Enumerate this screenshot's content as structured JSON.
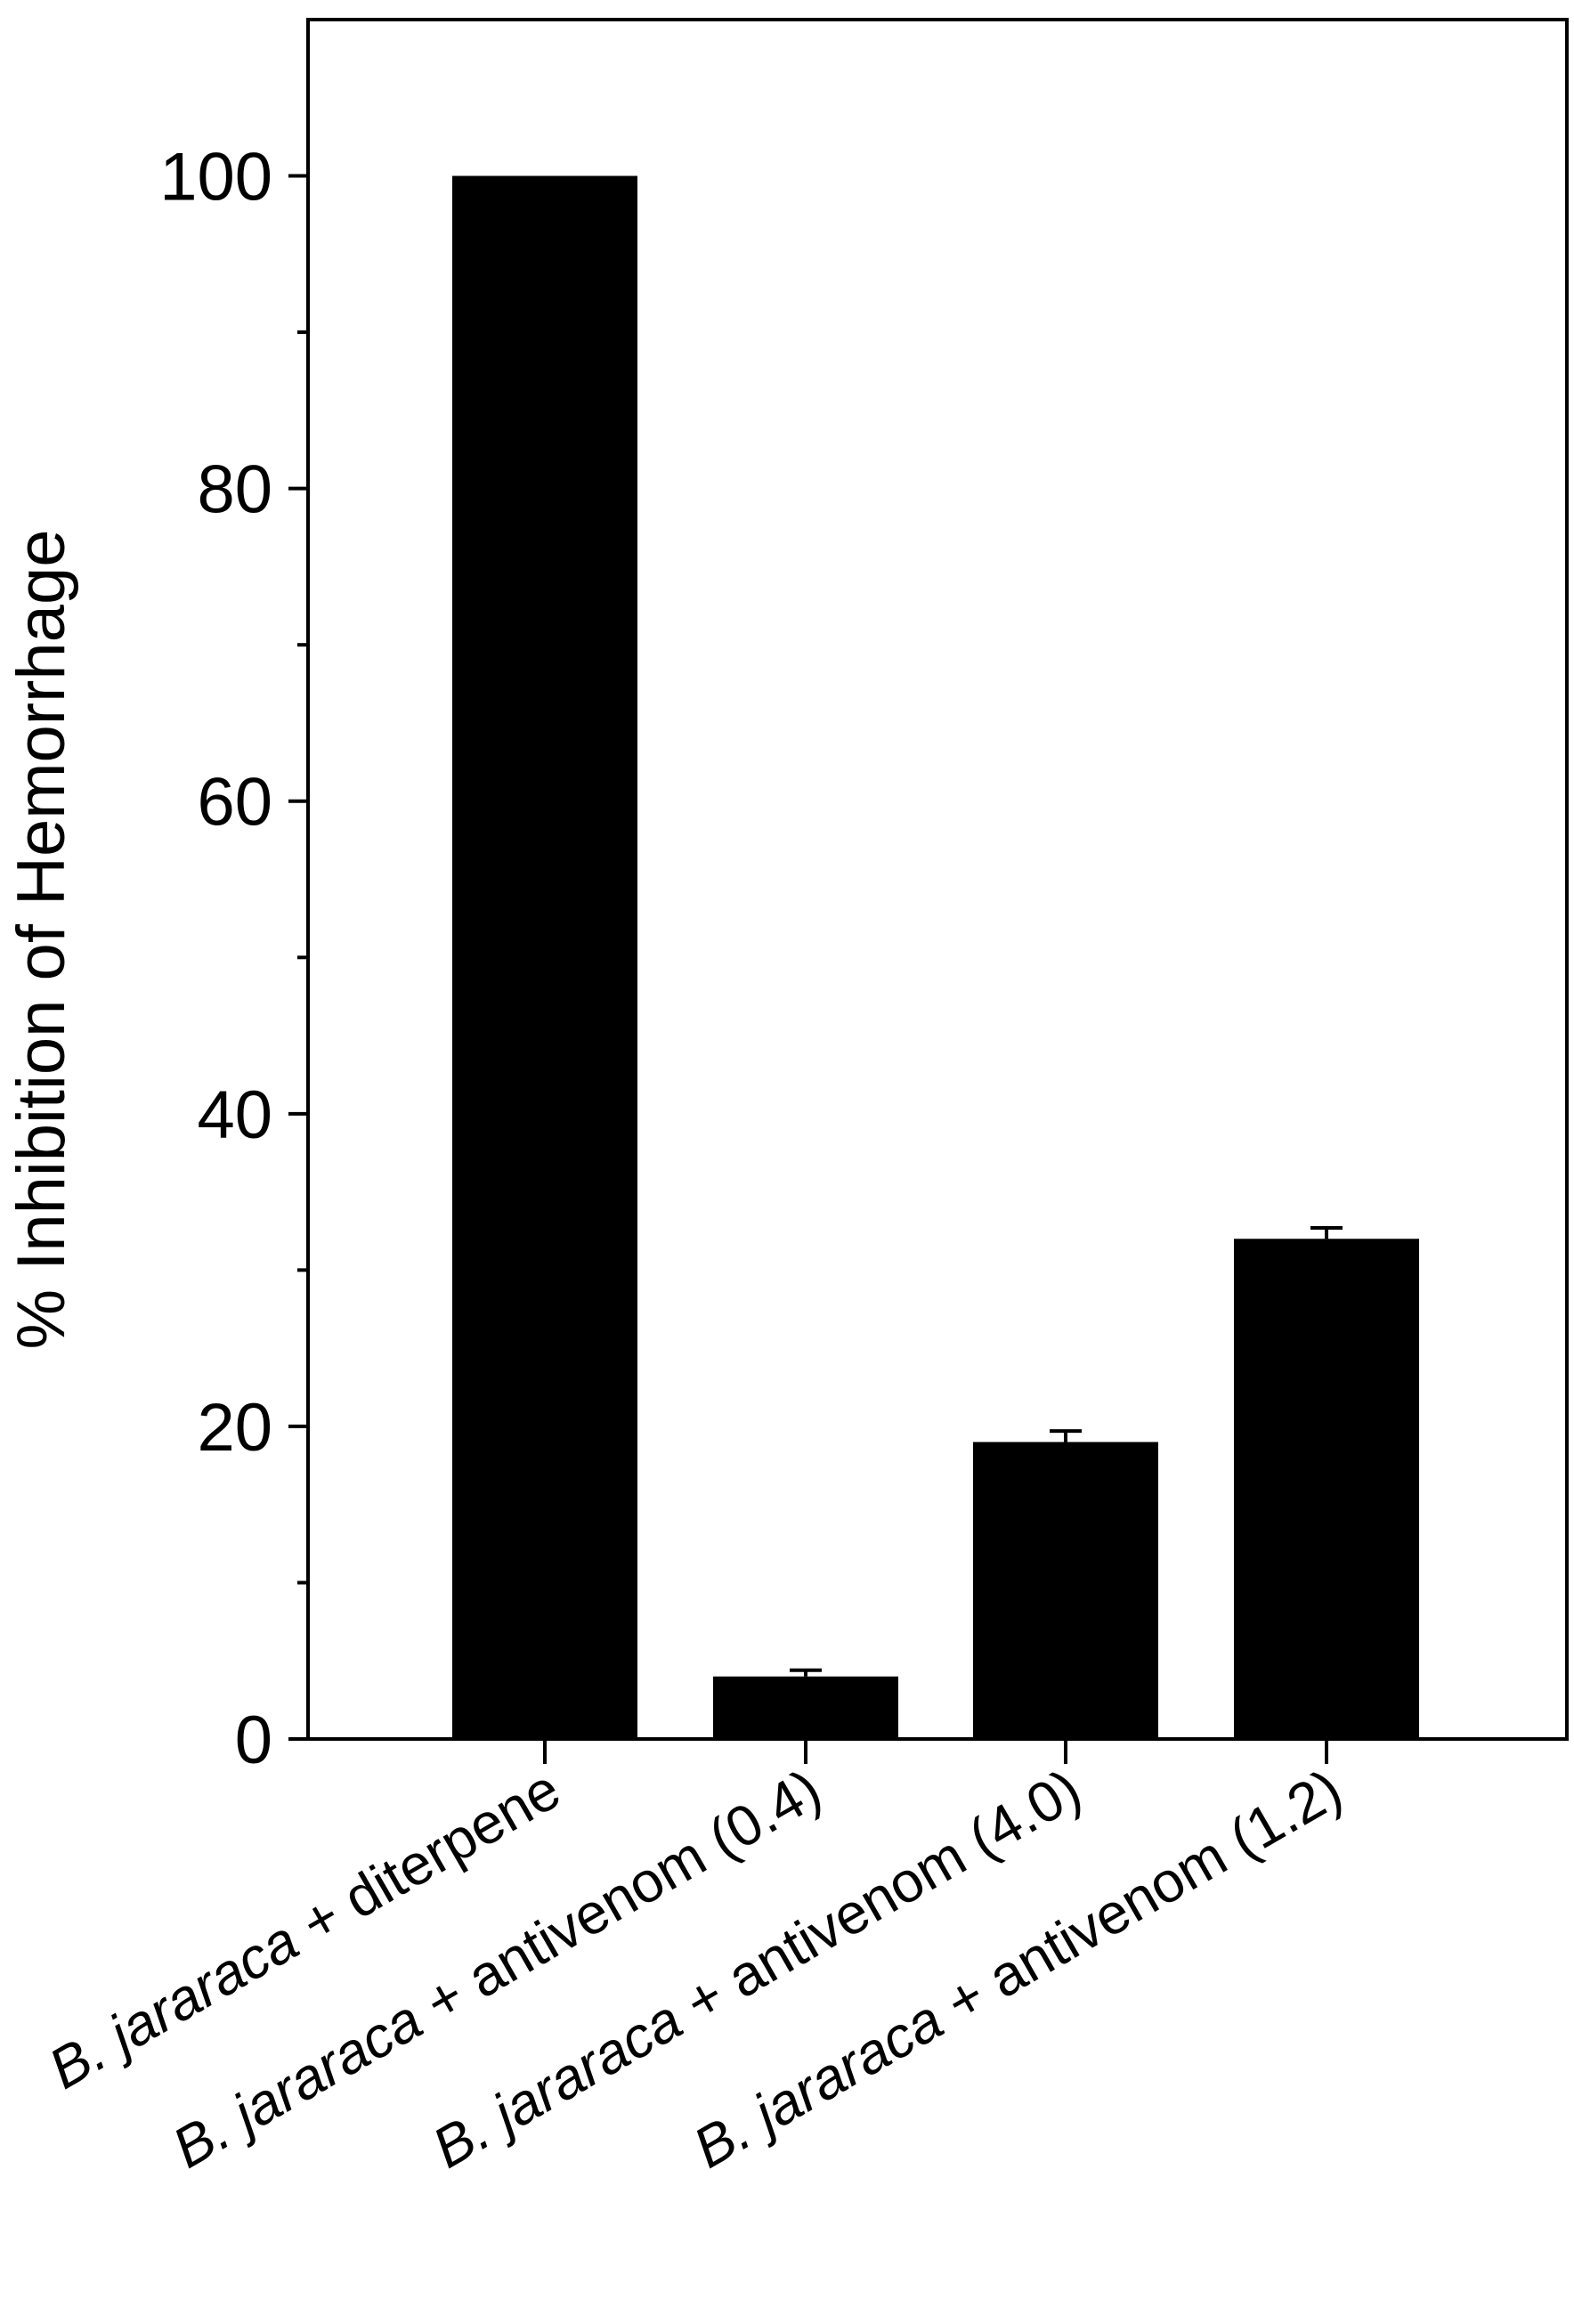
{
  "chart_data": {
    "type": "bar",
    "title": "",
    "xlabel": "",
    "ylabel": "% Inhibition of Hemorrhage",
    "ylim": [
      0,
      110
    ],
    "yticks_major": [
      0,
      20,
      40,
      60,
      80,
      100
    ],
    "yticks_minor": [
      10,
      30,
      50,
      70,
      90
    ],
    "grid": false,
    "bar_color": "#000000",
    "categories": [
      {
        "species": "B. jararaca",
        "rest": " + diterpene"
      },
      {
        "species": "B. jararaca",
        "rest": " + antivenom (0.4)"
      },
      {
        "species": "B. jararaca",
        "rest": " + antivenom (4.0)"
      },
      {
        "species": "B. jararaca",
        "rest": " + antivenom (1.2)"
      }
    ],
    "values": [
      100,
      4,
      19,
      32
    ],
    "errors": [
      0,
      0.4,
      0.7,
      0.7
    ]
  }
}
